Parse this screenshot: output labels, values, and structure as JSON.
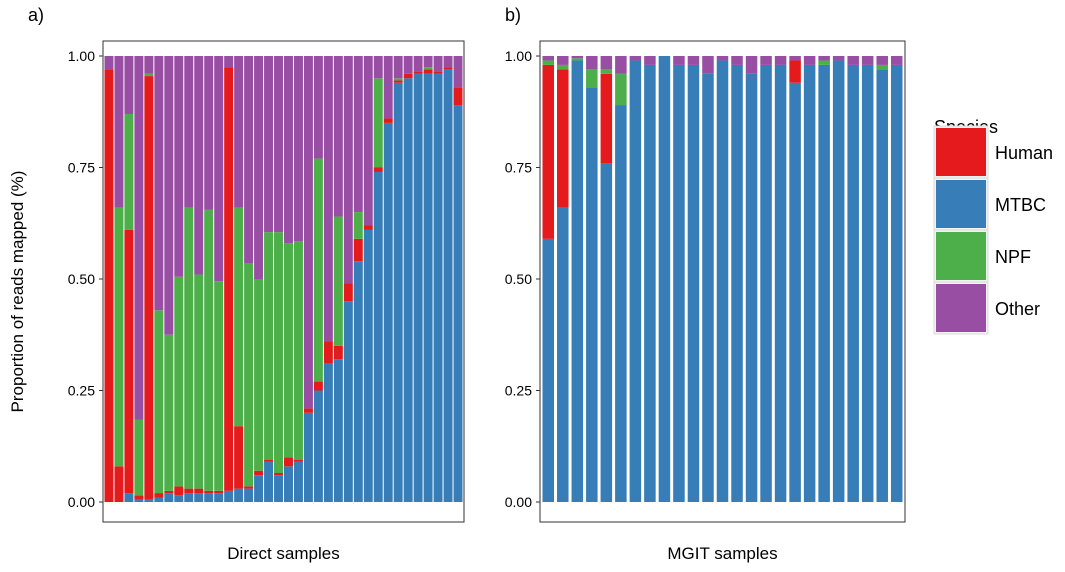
{
  "figure": {
    "legend": {
      "title": "Species",
      "entries": [
        {
          "name": "Human",
          "color": "#E41A1C"
        },
        {
          "name": "MTBC",
          "color": "#377EB8"
        },
        {
          "name": "NPF",
          "color": "#4DAF4A"
        },
        {
          "name": "Other",
          "color": "#984EA3"
        }
      ],
      "placement": "right"
    }
  },
  "chart_data": [
    {
      "type": "bar",
      "stacked": true,
      "panel": "a)",
      "xlabel": "Direct samples",
      "ylabel": "Proportion of reads mapped (%)",
      "ylim": [
        0,
        1
      ],
      "yticks": [
        "0.00",
        "0.25",
        "0.50",
        "0.75",
        "1.00"
      ],
      "grid": false,
      "series": [
        {
          "name": "MTBC",
          "values": [
            0.0,
            0.0,
            0.02,
            0.005,
            0.005,
            0.01,
            0.02,
            0.015,
            0.02,
            0.02,
            0.02,
            0.02,
            0.025,
            0.03,
            0.03,
            0.06,
            0.09,
            0.06,
            0.08,
            0.09,
            0.2,
            0.25,
            0.31,
            0.32,
            0.45,
            0.54,
            0.61,
            0.74,
            0.85,
            0.94,
            0.95,
            0.96,
            0.96,
            0.96,
            0.97,
            0.89
          ]
        },
        {
          "name": "Human",
          "values": [
            0.97,
            0.08,
            0.59,
            0.01,
            0.95,
            0.01,
            0.005,
            0.02,
            0.01,
            0.01,
            0.005,
            0.005,
            0.95,
            0.14,
            0.005,
            0.01,
            0.005,
            0.005,
            0.02,
            0.005,
            0.01,
            0.02,
            0.05,
            0.03,
            0.04,
            0.05,
            0.01,
            0.01,
            0.01,
            0.005,
            0.01,
            0.005,
            0.01,
            0.005,
            0.005,
            0.04
          ]
        },
        {
          "name": "NPF",
          "values": [
            0.0,
            0.58,
            0.26,
            0.17,
            0.005,
            0.41,
            0.35,
            0.47,
            0.63,
            0.48,
            0.63,
            0.47,
            0.0,
            0.49,
            0.5,
            0.43,
            0.51,
            0.54,
            0.48,
            0.49,
            0.0,
            0.5,
            0.0,
            0.29,
            0.0,
            0.06,
            0.0,
            0.2,
            0.0,
            0.005,
            0.0,
            0.0,
            0.005,
            0.0,
            0.0,
            0.0
          ]
        },
        {
          "name": "Other",
          "values": [
            0.03,
            0.34,
            0.13,
            0.815,
            0.04,
            0.57,
            0.625,
            0.495,
            0.34,
            0.49,
            0.345,
            0.505,
            0.025,
            0.34,
            0.465,
            0.5,
            0.395,
            0.395,
            0.42,
            0.415,
            0.79,
            0.23,
            0.64,
            0.36,
            0.51,
            0.35,
            0.38,
            0.05,
            0.14,
            0.05,
            0.04,
            0.035,
            0.025,
            0.035,
            0.025,
            0.07
          ]
        }
      ]
    },
    {
      "type": "bar",
      "stacked": true,
      "panel": "b)",
      "xlabel": "MGIT samples",
      "ylabel": "",
      "ylim": [
        0,
        1
      ],
      "yticks": [
        "0.00",
        "0.25",
        "0.50",
        "0.75",
        "1.00"
      ],
      "grid": false,
      "series": [
        {
          "name": "MTBC",
          "values": [
            0.59,
            0.66,
            0.99,
            0.93,
            0.76,
            0.89,
            0.99,
            0.98,
            1.0,
            0.98,
            0.98,
            0.96,
            0.99,
            0.98,
            0.96,
            0.98,
            0.98,
            0.94,
            0.98,
            0.98,
            0.99,
            0.98,
            0.98,
            0.97,
            0.98
          ]
        },
        {
          "name": "Human",
          "values": [
            0.39,
            0.31,
            0.0,
            0.0,
            0.2,
            0.0,
            0.0,
            0.0,
            0.0,
            0.0,
            0.0,
            0.0,
            0.0,
            0.0,
            0.0,
            0.0,
            0.0,
            0.05,
            0.0,
            0.0,
            0.0,
            0.0,
            0.0,
            0.0,
            0.0
          ]
        },
        {
          "name": "NPF",
          "values": [
            0.01,
            0.01,
            0.005,
            0.04,
            0.01,
            0.07,
            0.0,
            0.0,
            0.0,
            0.0,
            0.0,
            0.0,
            0.0,
            0.0,
            0.0,
            0.0,
            0.0,
            0.0,
            0.0,
            0.01,
            0.0,
            0.0,
            0.0,
            0.01,
            0.0
          ]
        },
        {
          "name": "Other",
          "values": [
            0.01,
            0.02,
            0.005,
            0.03,
            0.03,
            0.04,
            0.01,
            0.02,
            0.0,
            0.02,
            0.02,
            0.04,
            0.01,
            0.02,
            0.04,
            0.02,
            0.02,
            0.01,
            0.02,
            0.01,
            0.01,
            0.02,
            0.02,
            0.02,
            0.02
          ]
        }
      ]
    }
  ]
}
